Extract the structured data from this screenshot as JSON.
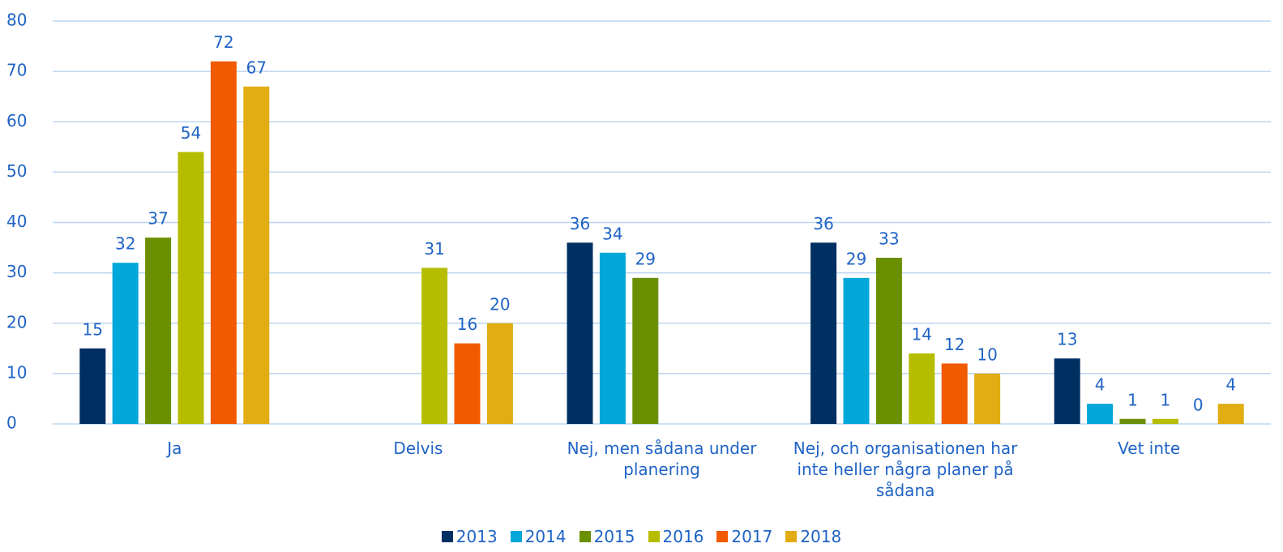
{
  "chart_data": {
    "type": "bar",
    "categories": [
      "Ja",
      "Delvis",
      "Nej, men sådana under planering",
      "Nej, och organisationen har inte heller några planer på sådana",
      "Vet inte"
    ],
    "series": [
      {
        "name": "2013",
        "color": "#002f62",
        "values": [
          15,
          null,
          36,
          36,
          13
        ]
      },
      {
        "name": "2014",
        "color": "#00a7d8",
        "values": [
          32,
          null,
          34,
          29,
          4
        ]
      },
      {
        "name": "2015",
        "color": "#6a8f00",
        "values": [
          37,
          null,
          29,
          33,
          1
        ]
      },
      {
        "name": "2016",
        "color": "#b6bd00",
        "values": [
          54,
          31,
          null,
          14,
          1
        ]
      },
      {
        "name": "2017",
        "color": "#f25a00",
        "values": [
          72,
          16,
          null,
          12,
          0
        ]
      },
      {
        "name": "2018",
        "color": "#e1ad13",
        "values": [
          67,
          20,
          null,
          10,
          4
        ]
      }
    ],
    "ylim": [
      0,
      80
    ],
    "yticks": [
      0,
      10,
      20,
      30,
      40,
      50,
      60,
      70,
      80
    ],
    "grid": true,
    "legend": "bottom"
  }
}
